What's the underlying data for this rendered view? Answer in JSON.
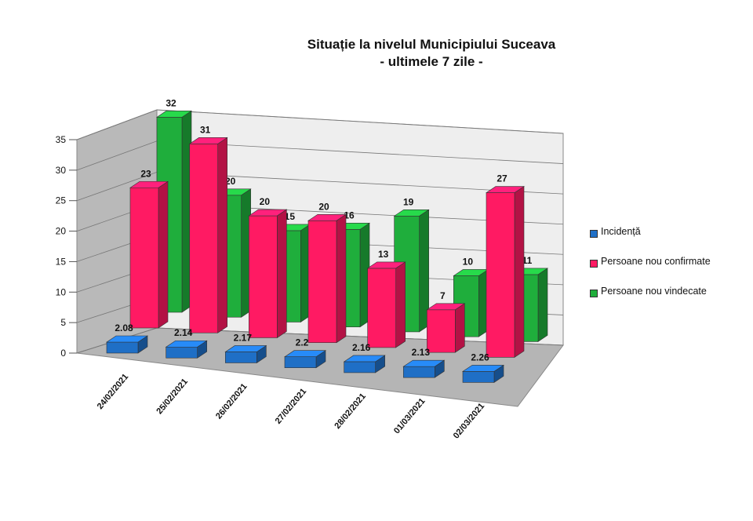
{
  "title": "Situație la nivelul Municipiului Suceava",
  "subtitle": "- ultimele 7 zile -",
  "chart_data": {
    "type": "bar",
    "style": "3d-clustered-column",
    "categories": [
      "24/02/2021",
      "25/02/2021",
      "26/02/2021",
      "27/02/2021",
      "28/02/2021",
      "01/03/2021",
      "02/03/2021"
    ],
    "series": [
      {
        "name": "Incidență",
        "values": [
          2.08,
          2.14,
          2.17,
          2.2,
          2.16,
          2.13,
          2.26
        ],
        "color": "#1f6fc6",
        "labels": [
          "2.08",
          "2.14",
          "2.17",
          "2.2",
          "2.16",
          "2.13",
          "2.26"
        ]
      },
      {
        "name": "Persoane nou confirmate",
        "values": [
          23,
          31,
          20,
          20,
          13,
          7,
          27
        ],
        "color": "#ff1a63",
        "labels": [
          "23",
          "31",
          "20",
          "20",
          "13",
          "7",
          "27"
        ]
      },
      {
        "name": "Persoane nou vindecate",
        "values": [
          32,
          20,
          15,
          16,
          19,
          10,
          11
        ],
        "color": "#1fae3c",
        "labels": [
          "32",
          "20",
          "15",
          "16",
          "19",
          "10",
          "11"
        ]
      }
    ],
    "y_ticks": [
      "0",
      "5",
      "10",
      "15",
      "20",
      "25",
      "30",
      "35"
    ],
    "ylim": [
      0,
      35
    ],
    "grid": true,
    "legend_position": "right"
  }
}
